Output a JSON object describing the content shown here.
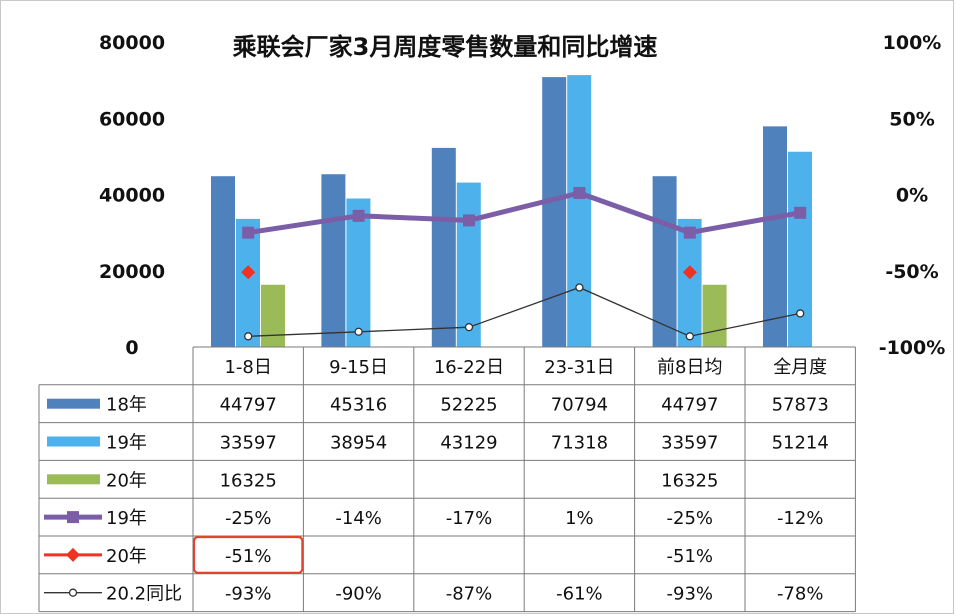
{
  "chart_data": {
    "type": "bar",
    "title": "乘联会厂家3月周度零售数量和同比增速",
    "categories": [
      "1-8日",
      "9-15日",
      "16-22日",
      "23-31日",
      "前8日均",
      "全月度"
    ],
    "y_left": {
      "ticks": [
        "80000",
        "60000",
        "40000",
        "20000",
        "0"
      ],
      "ylim": [
        0,
        80000
      ]
    },
    "y_right": {
      "ticks": [
        "100%",
        "50%",
        "0%",
        "-50%",
        "-100%"
      ],
      "ylim": [
        -100,
        100
      ]
    },
    "bar_series": [
      {
        "name": "18年",
        "color": "#4f81bd",
        "values": [
          44797,
          45316,
          52225,
          70794,
          44797,
          57873
        ],
        "labels": [
          "44797",
          "45316",
          "52225",
          "70794",
          "44797",
          "57873"
        ]
      },
      {
        "name": "19年",
        "color": "#4db1ec",
        "values": [
          33597,
          38954,
          43129,
          71318,
          33597,
          51214
        ],
        "labels": [
          "33597",
          "38954",
          "43129",
          "71318",
          "33597",
          "51214"
        ]
      },
      {
        "name": "20年",
        "color": "#9bbb59",
        "values": [
          16325,
          null,
          null,
          null,
          16325,
          null
        ],
        "labels": [
          "16325",
          "",
          "",
          "",
          "16325",
          ""
        ]
      }
    ],
    "line_series": [
      {
        "name": "19年",
        "color": "#7b5ea7",
        "marker": "square",
        "values": [
          -25,
          -14,
          -17,
          1,
          -25,
          -12
        ],
        "labels": [
          "-25%",
          "-14%",
          "-17%",
          "1%",
          "-25%",
          "-12%"
        ]
      },
      {
        "name": "20年",
        "color": "#ee3224",
        "marker": "diamond",
        "values": [
          -51,
          null,
          null,
          null,
          -51,
          null
        ],
        "labels": [
          "-51%",
          "",
          "",
          "",
          "-51%",
          ""
        ]
      },
      {
        "name": "20.2同比",
        "color": "#333333",
        "marker": "circle",
        "values": [
          -93,
          -90,
          -87,
          -61,
          -93,
          -78
        ],
        "labels": [
          "-93%",
          "-90%",
          "-87%",
          "-61%",
          "-93%",
          "-78%"
        ]
      }
    ],
    "highlight": {
      "row": "20年",
      "column": "1-8日",
      "color": "#e0442c"
    }
  }
}
